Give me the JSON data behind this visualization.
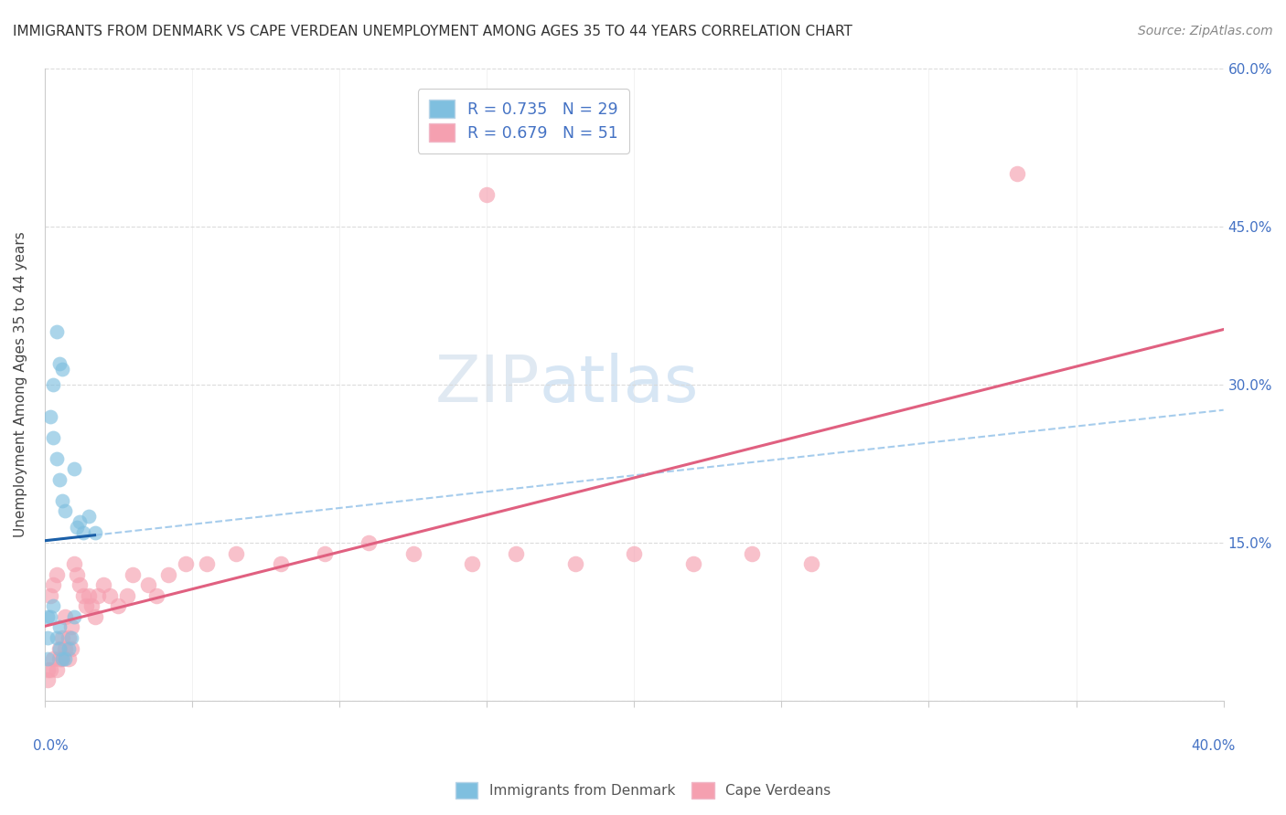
{
  "title": "IMMIGRANTS FROM DENMARK VS CAPE VERDEAN UNEMPLOYMENT AMONG AGES 35 TO 44 YEARS CORRELATION CHART",
  "source": "Source: ZipAtlas.com",
  "ylabel": "Unemployment Among Ages 35 to 44 years",
  "xlim": [
    0,
    0.4
  ],
  "ylim": [
    0,
    0.6
  ],
  "yticks": [
    0.0,
    0.15,
    0.3,
    0.45,
    0.6
  ],
  "ytick_labels": [
    "",
    "15.0%",
    "30.0%",
    "45.0%",
    "60.0%"
  ],
  "xticks": [
    0.0,
    0.05,
    0.1,
    0.15,
    0.2,
    0.25,
    0.3,
    0.35,
    0.4
  ],
  "background_color": "#ffffff",
  "grid_color": "#cccccc",
  "denmark_color": "#7fbfdf",
  "cape_verde_color": "#f5a0b0",
  "denmark_line_color": "#1a5fa8",
  "cape_verde_line_color": "#e06080",
  "denmark_dashed_color": "#90c0e8",
  "watermark_zip": "ZIP",
  "watermark_atlas": "atlas",
  "legend_label_dk": "R = 0.735   N = 29",
  "legend_label_cv": "R = 0.679   N = 51",
  "legend_color_text": "#4472c4",
  "denmark_scatter_x": [
    0.001,
    0.001,
    0.001,
    0.002,
    0.002,
    0.003,
    0.003,
    0.004,
    0.004,
    0.005,
    0.005,
    0.005,
    0.006,
    0.006,
    0.007,
    0.007,
    0.008,
    0.009,
    0.01,
    0.01,
    0.011,
    0.012,
    0.013,
    0.003,
    0.004,
    0.005,
    0.006,
    0.015,
    0.017
  ],
  "denmark_scatter_y": [
    0.04,
    0.06,
    0.08,
    0.08,
    0.27,
    0.09,
    0.25,
    0.06,
    0.23,
    0.05,
    0.07,
    0.21,
    0.04,
    0.19,
    0.04,
    0.18,
    0.05,
    0.06,
    0.08,
    0.22,
    0.165,
    0.17,
    0.16,
    0.3,
    0.35,
    0.32,
    0.315,
    0.175,
    0.16
  ],
  "cape_verde_scatter_x": [
    0.001,
    0.002,
    0.002,
    0.003,
    0.003,
    0.004,
    0.004,
    0.005,
    0.005,
    0.006,
    0.006,
    0.007,
    0.007,
    0.008,
    0.008,
    0.009,
    0.009,
    0.01,
    0.011,
    0.012,
    0.013,
    0.014,
    0.015,
    0.016,
    0.017,
    0.018,
    0.02,
    0.022,
    0.025,
    0.028,
    0.03,
    0.035,
    0.038,
    0.042,
    0.048,
    0.055,
    0.065,
    0.08,
    0.095,
    0.11,
    0.125,
    0.145,
    0.16,
    0.18,
    0.2,
    0.22,
    0.24,
    0.26,
    0.15,
    0.33,
    0.001
  ],
  "cape_verde_scatter_y": [
    0.02,
    0.03,
    0.1,
    0.04,
    0.11,
    0.03,
    0.12,
    0.04,
    0.05,
    0.04,
    0.06,
    0.05,
    0.08,
    0.04,
    0.06,
    0.05,
    0.07,
    0.13,
    0.12,
    0.11,
    0.1,
    0.09,
    0.1,
    0.09,
    0.08,
    0.1,
    0.11,
    0.1,
    0.09,
    0.1,
    0.12,
    0.11,
    0.1,
    0.12,
    0.13,
    0.13,
    0.14,
    0.13,
    0.14,
    0.15,
    0.14,
    0.13,
    0.14,
    0.13,
    0.14,
    0.13,
    0.14,
    0.13,
    0.48,
    0.5,
    0.03
  ]
}
